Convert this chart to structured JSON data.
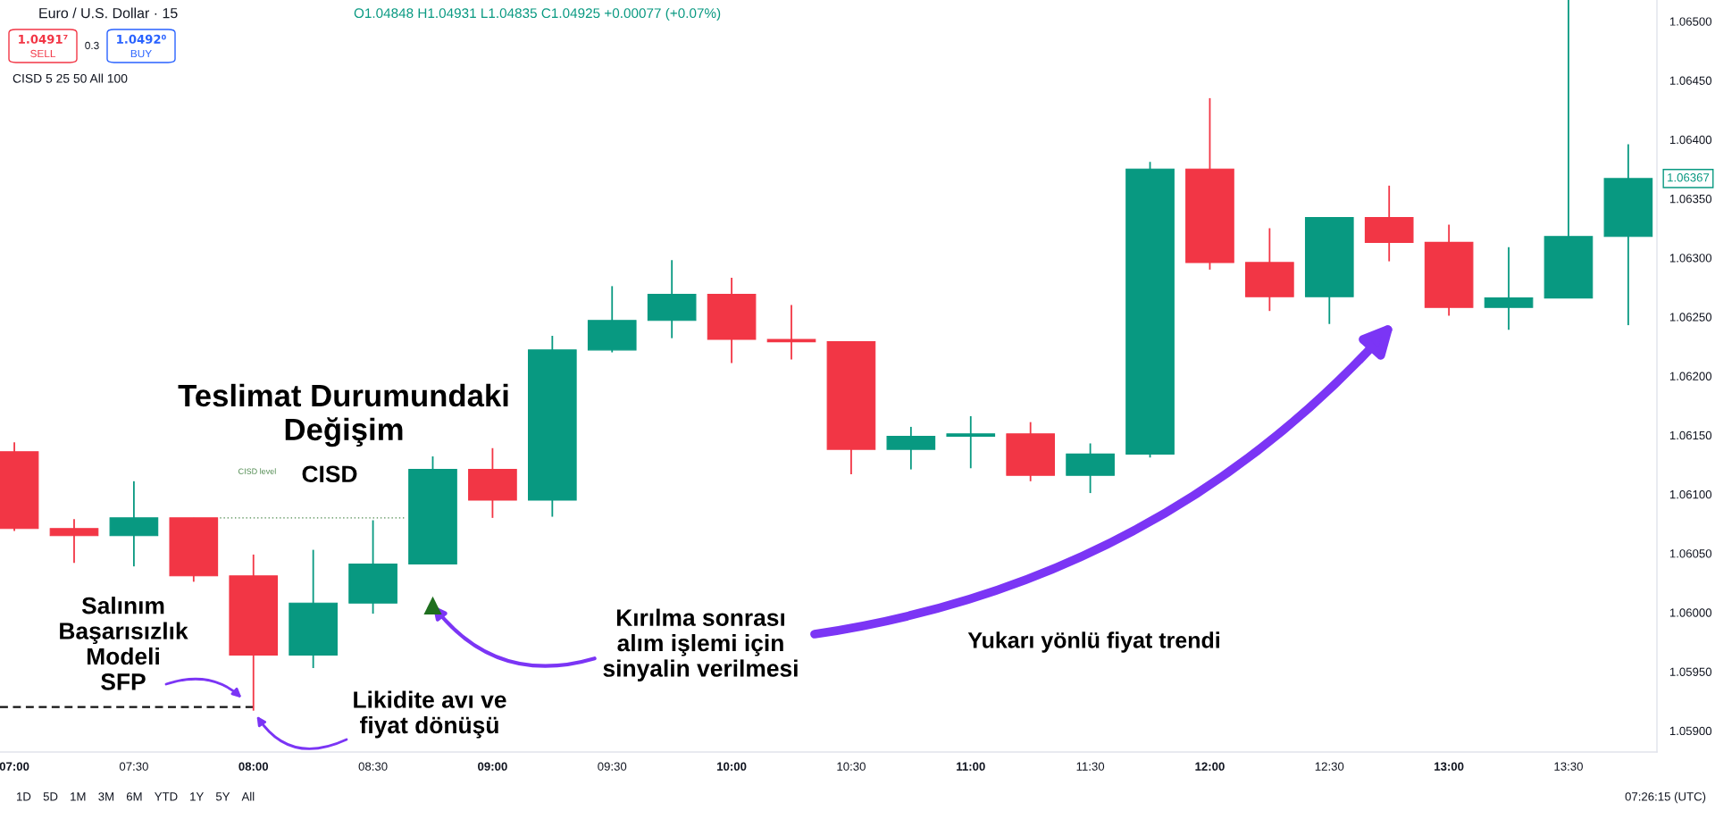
{
  "chart_data": {
    "type": "candlestick",
    "title": "Euro / U.S. Dollar · 15",
    "subtitle": "O1.04848 H1.04931 L1.04835 C1.04925 +0.00077 (+0.07%)",
    "x": [
      7,
      7.25,
      7.5,
      7.75,
      8,
      8.25,
      8.5,
      8.75,
      9,
      9.25,
      9.5,
      9.75,
      10,
      10.25,
      10.5,
      10.75,
      11,
      11.25,
      11.5,
      11.75,
      12,
      12.25,
      12.5,
      12.75,
      13,
      13.25,
      13.5,
      13.75
    ],
    "ohlc": [
      [
        1.06136,
        1.06144,
        1.06069,
        1.06071
      ],
      [
        1.06071,
        1.06079,
        1.06042,
        1.06065
      ],
      [
        1.06065,
        1.06111,
        1.06039,
        1.0608
      ],
      [
        1.0608,
        1.0608,
        1.06026,
        1.06031
      ],
      [
        1.06031,
        1.06049,
        1.05917,
        1.05964
      ],
      [
        1.05964,
        1.06053,
        1.05953,
        1.06008
      ],
      [
        1.06008,
        1.06078,
        1.05999,
        1.06041
      ],
      [
        1.06041,
        1.06132,
        1.06041,
        1.06121
      ],
      [
        1.06121,
        1.06139,
        1.0608,
        1.06095
      ],
      [
        1.06095,
        1.06234,
        1.06081,
        1.06222
      ],
      [
        1.06222,
        1.06276,
        1.0622,
        1.06247
      ],
      [
        1.06247,
        1.06298,
        1.06232,
        1.06269
      ],
      [
        1.06269,
        1.06283,
        1.06211,
        1.06231
      ],
      [
        1.06231,
        1.0626,
        1.06214,
        1.06229
      ],
      [
        1.06229,
        1.06229,
        1.06117,
        1.06138
      ],
      [
        1.06138,
        1.06157,
        1.06121,
        1.06149
      ],
      [
        1.06149,
        1.06166,
        1.06122,
        1.06151
      ],
      [
        1.06151,
        1.06161,
        1.06111,
        1.06116
      ],
      [
        1.06116,
        1.06143,
        1.06101,
        1.06134
      ],
      [
        1.06134,
        1.06381,
        1.06131,
        1.06375
      ],
      [
        1.06375,
        1.06435,
        1.0629,
        1.06296
      ],
      [
        1.06296,
        1.06325,
        1.06255,
        1.06267
      ],
      [
        1.06267,
        1.06334,
        1.06244,
        1.06334
      ],
      [
        1.06334,
        1.06361,
        1.06297,
        1.06313
      ],
      [
        1.06313,
        1.06328,
        1.06251,
        1.06258
      ],
      [
        1.06258,
        1.06309,
        1.06239,
        1.06266
      ],
      [
        1.06266,
        1.06518,
        1.06266,
        1.06318
      ],
      [
        1.06318,
        1.06396,
        1.06243,
        1.06367
      ]
    ],
    "colors": [
      "#f23645",
      "#f23645",
      "#089981",
      "#f23645",
      "#f23645",
      "#089981",
      "#089981",
      "#089981",
      "#f23645",
      "#089981",
      "#089981",
      "#089981",
      "#f23645",
      "#f23645",
      "#f23645",
      "#089981",
      "#089981",
      "#f23645",
      "#089981",
      "#089981",
      "#f23645",
      "#f23645",
      "#089981",
      "#f23645",
      "#f23645",
      "#089981",
      "#089981",
      "#089981"
    ],
    "xlim": [
      6.94,
      13.87
    ],
    "xticks": [
      {
        "value": 7,
        "label": "07:00"
      },
      {
        "value": 7.5,
        "label": "07:30"
      },
      {
        "value": 8,
        "label": "08:00"
      },
      {
        "value": 8.5,
        "label": "08:30"
      },
      {
        "value": 9,
        "label": "09:00"
      },
      {
        "value": 9.5,
        "label": "09:30"
      },
      {
        "value": 10,
        "label": "10:00"
      },
      {
        "value": 10.5,
        "label": "10:30"
      },
      {
        "value": 11,
        "label": "11:00"
      },
      {
        "value": 11.5,
        "label": "11:30"
      },
      {
        "value": 12,
        "label": "12:00"
      },
      {
        "value": 12.5,
        "label": "12:30"
      },
      {
        "value": 13,
        "label": "13:00"
      },
      {
        "value": 13.5,
        "label": "13:30"
      }
    ],
    "ylim": [
      1.05882,
      1.06518
    ],
    "yticks": [
      {
        "value": 1.059,
        "label": "1.05900"
      },
      {
        "value": 1.0595,
        "label": "1.05950"
      },
      {
        "value": 1.06,
        "label": "1.06000"
      },
      {
        "value": 1.0605,
        "label": "1.06050"
      },
      {
        "value": 1.061,
        "label": "1.06100"
      },
      {
        "value": 1.0615,
        "label": "1.06150"
      },
      {
        "value": 1.062,
        "label": "1.06200"
      },
      {
        "value": 1.0625,
        "label": "1.06250"
      },
      {
        "value": 1.063,
        "label": "1.06300"
      },
      {
        "value": 1.0635,
        "label": "1.06350"
      },
      {
        "value": 1.064,
        "label": "1.06400"
      },
      {
        "value": 1.0645,
        "label": "1.06450"
      },
      {
        "value": 1.065,
        "label": "1.06500"
      }
    ],
    "series": [
      {
        "type": "scatter",
        "x": [
          8.75
        ],
        "values": [
          1.06006
        ],
        "color": "#1f6f1f",
        "marker": "triangle"
      },
      {
        "type": "line",
        "name": "CISD level",
        "x": [
          7.86,
          8.63
        ],
        "values": [
          1.0608,
          1.0608
        ],
        "color": "#4f8a4f",
        "line_style": "dotted"
      },
      {
        "type": "line",
        "x": [
          6.94,
          8.0
        ],
        "values": [
          1.0592,
          1.0592
        ],
        "color": "#111111",
        "line_style": "dashed"
      }
    ],
    "annotations": [
      "Teslimat Durumundaki\nDeğişim",
      "CISD",
      "Salınım\nBaşarısızlık\nModeli\nSFP",
      "Likidite avı ve\nfiyat dönüşü",
      {
        "text": "Kırılma sonrası\nalım işlemi için\nsinyalin verilmesi",
        "x": 8.75,
        "y": 1.06006
      },
      "Yukarı yönlü fiyat trendi",
      "1.06367",
      "1.0491⁷",
      "SELL",
      "0.3",
      "1.0492⁰",
      "BUY",
      "CISD 5 25 50 All 100",
      "1D 5D 1M 3M 6M YTD 1Y 5Y All",
      "07:26:15 (UTC)"
    ]
  }
}
